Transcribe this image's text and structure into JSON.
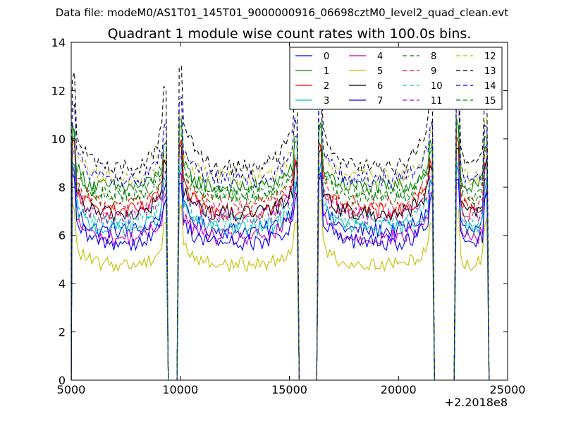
{
  "figure": {
    "suptitle": "Data file: modeM0/AS1T01_145T01_9000000916_06698cztM0_level2_quad_clean.evt"
  },
  "chart_data": {
    "type": "line",
    "title": "Quadrant 1 module wise count rates with 100.0s bins.",
    "xlabel": "",
    "ylabel": "",
    "x_offset_label": "+2.2018e8",
    "xlim": [
      5000,
      25000
    ],
    "ylim": [
      0,
      14
    ],
    "x_ticks": [
      5000,
      10000,
      15000,
      20000,
      25000
    ],
    "y_ticks": [
      0,
      2,
      4,
      6,
      8,
      10,
      12,
      14
    ],
    "grid": false,
    "legend_position": "top-right",
    "legend_columns": 4,
    "gti_segments": [
      [
        5050,
        9350
      ],
      [
        9950,
        15350
      ],
      [
        16350,
        21550
      ],
      [
        22650,
        24050
      ]
    ],
    "series": [
      {
        "name": "0",
        "color": "#0000ff",
        "style": "solid",
        "level": 6.2,
        "edge_peak": 7.6,
        "noise": 0.35
      },
      {
        "name": "1",
        "color": "#008000",
        "style": "solid",
        "level": 8.0,
        "edge_peak": 9.3,
        "noise": 0.35
      },
      {
        "name": "2",
        "color": "#ff0000",
        "style": "solid",
        "level": 7.0,
        "edge_peak": 8.5,
        "noise": 0.35
      },
      {
        "name": "3",
        "color": "#00bfbf",
        "style": "solid",
        "level": 6.3,
        "edge_peak": 7.6,
        "noise": 0.35
      },
      {
        "name": "4",
        "color": "#bf00bf",
        "style": "solid",
        "level": 5.9,
        "edge_peak": 7.2,
        "noise": 0.35
      },
      {
        "name": "5",
        "color": "#bfbf00",
        "style": "solid",
        "level": 4.8,
        "edge_peak": 6.0,
        "noise": 0.3
      },
      {
        "name": "6",
        "color": "#000000",
        "style": "solid",
        "level": 6.9,
        "edge_peak": 8.4,
        "noise": 0.35
      },
      {
        "name": "7",
        "color": "#0000ff",
        "style": "solid",
        "level": 5.7,
        "edge_peak": 7.0,
        "noise": 0.35
      },
      {
        "name": "8",
        "color": "#008000",
        "style": "dashed",
        "level": 7.6,
        "edge_peak": 9.0,
        "noise": 0.35
      },
      {
        "name": "9",
        "color": "#ff0000",
        "style": "dashed",
        "level": 7.3,
        "edge_peak": 8.8,
        "noise": 0.35
      },
      {
        "name": "10",
        "color": "#00bfbf",
        "style": "dashed",
        "level": 6.6,
        "edge_peak": 8.0,
        "noise": 0.35
      },
      {
        "name": "11",
        "color": "#bf00bf",
        "style": "dashed",
        "level": 6.8,
        "edge_peak": 8.2,
        "noise": 0.35
      },
      {
        "name": "12",
        "color": "#bfbf00",
        "style": "dashed",
        "level": 8.4,
        "edge_peak": 10.0,
        "noise": 0.35
      },
      {
        "name": "13",
        "color": "#000000",
        "style": "dashed",
        "level": 8.8,
        "edge_peak": 11.5,
        "noise": 0.35
      },
      {
        "name": "14",
        "color": "#0000ff",
        "style": "dashed",
        "level": 8.3,
        "edge_peak": 10.3,
        "noise": 0.35
      },
      {
        "name": "15",
        "color": "#008000",
        "style": "dashed",
        "level": 7.7,
        "edge_peak": 9.4,
        "noise": 0.35
      }
    ]
  }
}
